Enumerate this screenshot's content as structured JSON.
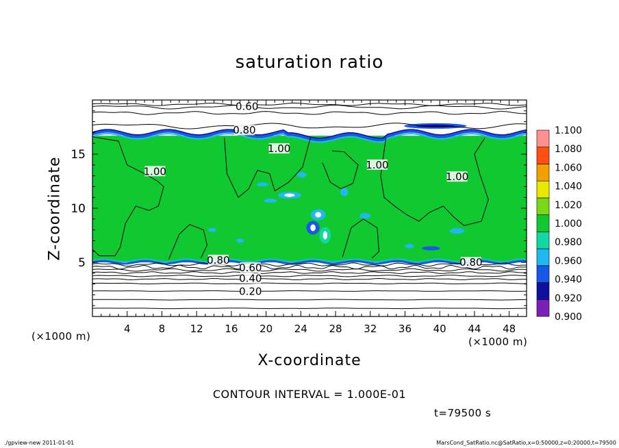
{
  "chart_data": {
    "type": "heatmap",
    "title": "saturation ratio",
    "xlabel": "X-coordinate",
    "ylabel": "Z-coordinate",
    "x_unit": "(×1000 m)",
    "y_unit": "(×1000 m)",
    "xlim": [
      0,
      50
    ],
    "ylim": [
      0,
      20
    ],
    "x_ticks": [
      4,
      8,
      12,
      16,
      20,
      24,
      28,
      32,
      36,
      40,
      44,
      48
    ],
    "y_ticks": [
      5,
      10,
      15
    ],
    "colorbar": {
      "levels": [
        0.9,
        0.92,
        0.94,
        0.96,
        0.98,
        1.0,
        1.02,
        1.04,
        1.06,
        1.08,
        1.1
      ],
      "labels": [
        "0.900",
        "0.920",
        "0.940",
        "0.960",
        "0.980",
        "1.000",
        "1.020",
        "1.040",
        "1.060",
        "1.080",
        "1.100"
      ],
      "colors": [
        "#7a1fb8",
        "#1010a0",
        "#1858e8",
        "#20b8f0",
        "#10d8a0",
        "#10c830",
        "#78d818",
        "#e8e800",
        "#f0a000",
        "#ff5010",
        "#ff9090"
      ]
    },
    "contour_labels": [
      {
        "text": "0.60",
        "x": 17.8,
        "z": 19.4
      },
      {
        "text": "0.80",
        "x": 17.5,
        "z": 17.2
      },
      {
        "text": "1.00",
        "x": 21.5,
        "z": 15.5
      },
      {
        "text": "1.00",
        "x": 7.2,
        "z": 13.4
      },
      {
        "text": "1.00",
        "x": 32.8,
        "z": 14.0
      },
      {
        "text": "1.00",
        "x": 42.0,
        "z": 12.9
      },
      {
        "text": "0.80",
        "x": 14.5,
        "z": 5.2
      },
      {
        "text": "0.80",
        "x": 43.6,
        "z": 5.0
      },
      {
        "text": "0.60",
        "x": 18.2,
        "z": 4.5
      },
      {
        "text": "0.40",
        "x": 18.2,
        "z": 3.5
      },
      {
        "text": "0.20",
        "x": 18.2,
        "z": 2.3
      }
    ],
    "saturated_layer_z": [
      5,
      17
    ],
    "contour_interval": "CONTOUR INTERVAL = 1.000E-01"
  },
  "time_label": "t=79500 s",
  "footer": {
    "left": "./gpview-new   2011-01-01",
    "right": "MarsCond_SatRatio.nc@SatRatio,x=0:50000,z=0:20000,t=79500"
  }
}
